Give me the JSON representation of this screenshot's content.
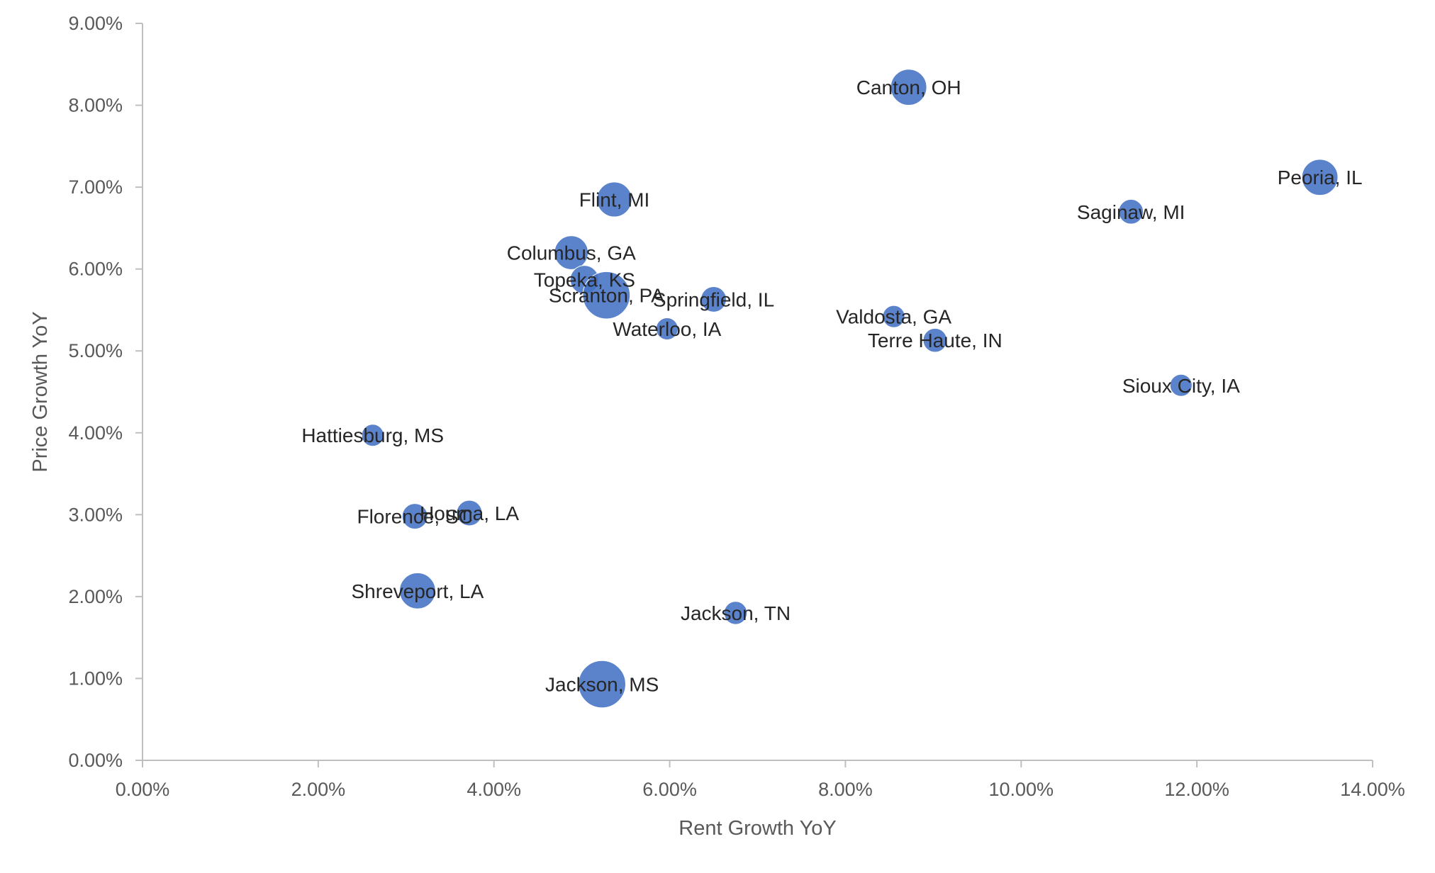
{
  "chart_data": {
    "type": "scatter",
    "title": "",
    "xlabel": "Rent Growth YoY",
    "ylabel": "Price Growth YoY",
    "xlim": [
      0,
      14
    ],
    "ylim": [
      0,
      9
    ],
    "x_ticks": [
      "0.00%",
      "2.00%",
      "4.00%",
      "6.00%",
      "8.00%",
      "10.00%",
      "12.00%",
      "14.00%"
    ],
    "y_ticks": [
      "0.00%",
      "1.00%",
      "2.00%",
      "3.00%",
      "4.00%",
      "5.00%",
      "6.00%",
      "7.00%",
      "8.00%",
      "9.00%"
    ],
    "grid": false,
    "legend": "none",
    "marker_color": "#4472C4",
    "points": [
      {
        "label": "Canton, OH",
        "x": 8.72,
        "y": 8.22,
        "size": 3.2
      },
      {
        "label": "Peoria, IL",
        "x": 13.4,
        "y": 7.12,
        "size": 3.2
      },
      {
        "label": "Saginaw, MI",
        "x": 11.25,
        "y": 6.7,
        "size": 1.5
      },
      {
        "label": "Flint, MI",
        "x": 5.37,
        "y": 6.85,
        "size": 3.0
      },
      {
        "label": "Columbus, GA",
        "x": 4.88,
        "y": 6.2,
        "size": 2.8
      },
      {
        "label": "Topeka, KS",
        "x": 5.03,
        "y": 5.87,
        "size": 2.0
      },
      {
        "label": "Scranton, PA",
        "x": 5.28,
        "y": 5.68,
        "size": 5.5
      },
      {
        "label": "Springfield, IL",
        "x": 6.5,
        "y": 5.63,
        "size": 1.6
      },
      {
        "label": "Waterloo, IA",
        "x": 5.97,
        "y": 5.27,
        "size": 1.2
      },
      {
        "label": "Valdosta, GA",
        "x": 8.55,
        "y": 5.42,
        "size": 1.2
      },
      {
        "label": "Terre Haute, IN",
        "x": 9.02,
        "y": 5.13,
        "size": 1.4
      },
      {
        "label": "Sioux City, IA",
        "x": 11.82,
        "y": 4.58,
        "size": 1.2
      },
      {
        "label": "Hattiesburg, MS",
        "x": 2.62,
        "y": 3.97,
        "size": 1.2
      },
      {
        "label": "Florence, SC",
        "x": 3.1,
        "y": 2.98,
        "size": 1.6
      },
      {
        "label": "Houma, LA",
        "x": 3.72,
        "y": 3.02,
        "size": 1.6
      },
      {
        "label": "Shreveport, LA",
        "x": 3.13,
        "y": 2.07,
        "size": 3.2
      },
      {
        "label": "Jackson, TN",
        "x": 6.75,
        "y": 1.8,
        "size": 1.3
      },
      {
        "label": "Jackson, MS",
        "x": 5.23,
        "y": 0.93,
        "size": 5.5
      }
    ]
  }
}
